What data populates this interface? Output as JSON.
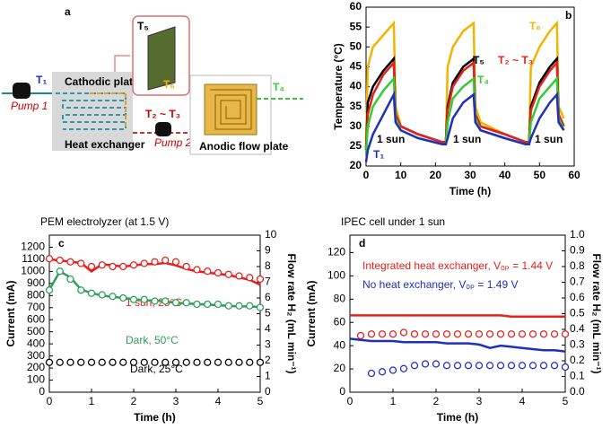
{
  "diagram": {
    "panel_label": "a",
    "t1": "T₁",
    "pump1": "Pump 1",
    "cathodic": "Cathodic plate",
    "heat_exchanger": "Heat exchanger",
    "t5": "T₅",
    "t6": "T₆",
    "t2t3": "T₂ ~ T₃",
    "pump2": "Pump 2",
    "anodic": "Anodic flow plate",
    "t4": "T₄"
  },
  "chart_data": [
    {
      "type": "line",
      "panel_label": "b",
      "x_label": "Time (h)",
      "y_label": "Temperature (°C)",
      "xlim": [
        0,
        60
      ],
      "xticks": [
        0,
        10,
        20,
        30,
        40,
        50,
        60
      ],
      "ylim": [
        20,
        60
      ],
      "yticks": [
        20,
        25,
        30,
        35,
        40,
        45,
        50,
        55,
        60
      ],
      "annotations": [
        "1 sun",
        "1 sun",
        "1 sun"
      ],
      "x": [
        0,
        0.5,
        2,
        5,
        8,
        8.5,
        10,
        15,
        22,
        23,
        23.5,
        25,
        28,
        31,
        31.5,
        33,
        40,
        46,
        47,
        47.5,
        50,
        53,
        55,
        55.5,
        57
      ],
      "series": [
        {
          "name": "T₆",
          "color": "#f2b400",
          "style": "line",
          "values": [
            25,
            45,
            50,
            53,
            56,
            35,
            30,
            28,
            26,
            26,
            45,
            50,
            54,
            56,
            35,
            31,
            28,
            26,
            26,
            45,
            50,
            54,
            56,
            35,
            32
          ]
        },
        {
          "name": "T₅",
          "color": "#000000",
          "style": "line",
          "values": [
            24,
            36,
            40,
            44,
            47,
            33,
            30,
            28,
            26,
            26,
            35,
            41,
            45,
            47,
            33,
            30,
            28,
            26,
            26,
            35,
            41,
            45,
            47,
            33,
            30
          ]
        },
        {
          "name": "T₂ ~ T₃",
          "color": "#e8201c",
          "style": "line",
          "values": [
            24,
            33,
            38,
            43,
            46,
            33,
            30,
            28,
            26,
            26,
            34,
            40,
            44,
            46,
            33,
            30,
            28,
            26,
            26,
            34,
            40,
            44,
            46,
            33,
            30
          ]
        },
        {
          "name": "T₄",
          "color": "#33cc33",
          "style": "line",
          "values": [
            23,
            30,
            35,
            39,
            42,
            32,
            29,
            27,
            25.5,
            25.5,
            31,
            37,
            40,
            42,
            32,
            29,
            27,
            25.5,
            25.5,
            31,
            37,
            40,
            42,
            32,
            29
          ]
        },
        {
          "name": "T₁",
          "color": "#1f2fbf",
          "style": "line",
          "values": [
            21,
            24,
            28,
            33,
            38,
            31,
            29,
            27,
            25.5,
            25.5,
            27,
            32,
            36,
            38,
            31,
            29,
            27,
            25.5,
            25.5,
            27,
            32,
            36,
            38,
            31,
            29
          ]
        }
      ]
    },
    {
      "type": "line",
      "panel_label": "c",
      "title": "PEM electrolyzer (at 1.5 V)",
      "x_label": "Time (h)",
      "y_label": "Current (mA)",
      "y2_label": "Flow rate H₂ (mL min⁻¹)",
      "xlim": [
        0,
        5
      ],
      "xticks": [
        0,
        1,
        2,
        3,
        4,
        5
      ],
      "ylim": [
        0,
        1300
      ],
      "yticks": [
        0,
        100,
        200,
        300,
        400,
        500,
        600,
        700,
        800,
        900,
        1000,
        1100,
        1200
      ],
      "y2lim": [
        0,
        10
      ],
      "y2ticks": [
        0,
        1,
        2,
        3,
        4,
        5,
        6,
        7,
        8,
        9,
        10
      ],
      "x": [
        0,
        0.25,
        0.5,
        0.75,
        1,
        1.25,
        1.5,
        1.75,
        2,
        2.25,
        2.5,
        2.75,
        3,
        3.25,
        3.5,
        3.75,
        4,
        4.25,
        4.5,
        4.75,
        5
      ],
      "series": [
        {
          "name": "1 sun, 25°C",
          "color": "#e8201c",
          "style": "line",
          "values": [
            1100,
            1090,
            1080,
            1070,
            1000,
            1060,
            1050,
            1040,
            1050,
            1060,
            1060,
            1070,
            1050,
            1020,
            1000,
            990,
            980,
            970,
            950,
            930,
            890
          ]
        },
        {
          "color": "#e8201c",
          "style": "markers",
          "axis": "y2",
          "values": [
            8.5,
            8.4,
            8.3,
            8.2,
            8.0,
            8.1,
            8.0,
            8.0,
            8.1,
            8.2,
            8.3,
            8.4,
            8.3,
            8.0,
            7.8,
            7.7,
            7.6,
            7.5,
            7.4,
            7.3,
            7.2
          ]
        },
        {
          "name": "Dark, 50°C",
          "color": "#2e9e5a",
          "style": "line",
          "values": [
            850,
            1000,
            950,
            850,
            820,
            800,
            790,
            780,
            770,
            760,
            760,
            750,
            740,
            735,
            730,
            725,
            720,
            715,
            710,
            710,
            705
          ]
        },
        {
          "color": "#2e9e5a",
          "style": "markers",
          "axis": "y2",
          "values": [
            6.5,
            7.7,
            7.2,
            6.5,
            6.3,
            6.2,
            6.1,
            6.0,
            5.9,
            5.9,
            5.8,
            5.8,
            5.7,
            5.7,
            5.6,
            5.6,
            5.6,
            5.5,
            5.5,
            5.5,
            5.4
          ]
        },
        {
          "name": "Dark, 25°C",
          "color": "#000000",
          "style": "markers",
          "axis": "y2",
          "values": [
            1.9,
            1.9,
            1.9,
            1.9,
            1.9,
            1.9,
            1.9,
            1.9,
            1.9,
            1.9,
            1.9,
            1.9,
            1.9,
            1.9,
            1.9,
            1.9,
            1.9,
            1.9,
            1.9,
            1.9,
            1.9
          ]
        }
      ]
    },
    {
      "type": "line",
      "panel_label": "d",
      "title": "IPEC cell under 1 sun",
      "x_label": "Time (h)",
      "y_label": "Current (mA)",
      "y2_label": "Flow rate H₂ (mL min⁻¹)",
      "xlim": [
        0,
        5
      ],
      "xticks": [
        0,
        1,
        2,
        3,
        4,
        5
      ],
      "ylim": [
        0,
        135
      ],
      "yticks": [
        0,
        20,
        40,
        60,
        80,
        100,
        120
      ],
      "y2lim": [
        0,
        1.0
      ],
      "y2ticks": [
        {
          "value": 0,
          "label": "0.0"
        },
        0.1,
        0.2,
        0.3,
        0.4,
        0.5,
        0.6,
        0.7,
        0.8,
        0.9,
        {
          "value": 1,
          "label": "1.0"
        }
      ],
      "x": [
        0,
        0.25,
        0.5,
        0.75,
        1,
        1.25,
        1.5,
        1.75,
        2,
        2.25,
        2.5,
        2.75,
        3,
        3.25,
        3.5,
        3.75,
        4,
        4.25,
        4.5,
        4.75,
        5
      ],
      "series": [
        {
          "name": "Integrated heat exchanger, Vₒₚ = 1.44 V",
          "color": "#e8201c",
          "style": "line",
          "values": [
            66,
            66,
            66,
            66,
            66,
            66,
            66,
            66,
            66,
            66,
            66,
            66,
            66,
            66,
            66,
            65,
            65,
            65,
            65,
            65,
            65
          ]
        },
        {
          "color": "#e8201c",
          "style": "markers",
          "axis": "y2",
          "values": [
            null,
            0.36,
            0.37,
            0.37,
            0.37,
            0.38,
            0.37,
            0.37,
            0.37,
            0.37,
            0.37,
            0.37,
            0.37,
            0.37,
            0.37,
            0.37,
            0.37,
            0.37,
            0.37,
            0.37,
            0.37
          ]
        },
        {
          "name": "No heat exchanger, Vₒₚ = 1.49 V",
          "color": "#1f2fbf",
          "style": "line",
          "values": [
            46,
            45,
            44,
            44,
            44,
            43,
            43,
            43,
            43,
            42,
            42,
            42,
            41,
            38,
            40,
            39,
            38,
            37,
            36,
            36,
            35
          ]
        },
        {
          "color": "#1f2fbf",
          "style": "markers",
          "axis": "y2",
          "values": [
            null,
            null,
            0.12,
            0.13,
            0.14,
            0.15,
            0.17,
            0.18,
            0.18,
            0.17,
            0.17,
            0.17,
            0.17,
            0.17,
            0.17,
            0.17,
            0.17,
            0.17,
            0.17,
            0.17,
            0.16
          ]
        }
      ]
    }
  ]
}
